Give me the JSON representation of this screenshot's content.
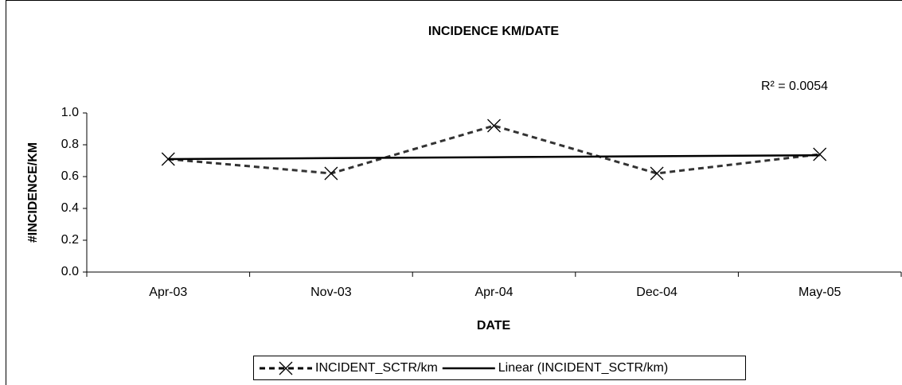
{
  "chart_data": {
    "type": "line",
    "title": "INCIDENCE KM/DATE",
    "x_label": "DATE",
    "y_label": "#INCIDENCE/KM",
    "categories": [
      "Apr-03",
      "Nov-03",
      "Apr-04",
      "Dec-04",
      "May-05"
    ],
    "series": [
      {
        "name": "INCIDENT_SCTR/km",
        "color": "#000000",
        "style": "dashed",
        "marker": "x",
        "values": [
          0.71,
          0.62,
          0.92,
          0.62,
          0.74
        ]
      },
      {
        "name": "Linear (INCIDENT_SCTR/km)",
        "color": "#000000",
        "style": "solid",
        "values": [
          0.71,
          0.716,
          0.722,
          0.728,
          0.734
        ]
      }
    ],
    "annotation": "R² = 0.0054",
    "ylim": [
      0,
      1
    ],
    "yticks": [
      {
        "value": 0,
        "label": "0.0"
      },
      0.2,
      0.4,
      0.6,
      0.8,
      {
        "value": 1,
        "label": "1.0"
      }
    ],
    "legend": "bottom",
    "grid": false
  }
}
